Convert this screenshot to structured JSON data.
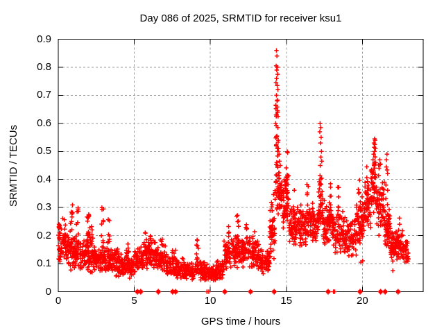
{
  "chart_data": {
    "type": "scatter",
    "title": "Day 086 of 2025, SRMTID for receiver ksu1",
    "xlabel": "GPS time / hours",
    "ylabel": "SRMTID / TECUs",
    "xlim": [
      0,
      24
    ],
    "ylim": [
      0,
      0.9
    ],
    "xticks": [
      0,
      5,
      10,
      15,
      20
    ],
    "yticks": [
      0,
      0.1,
      0.2,
      0.3,
      0.4,
      0.5,
      0.6,
      0.7,
      0.8,
      0.9
    ],
    "grid": true,
    "legend": "none",
    "marker": "+",
    "colors": {
      "marker": "#ff0000",
      "grid": "#9b9b9b",
      "axis": "#000000",
      "background": "#ffffff",
      "text": "#000000"
    },
    "cloud_bins_format": "[x_start,x_end,y_min,y_max,count]",
    "cloud_bins": [
      [
        0.0,
        0.5,
        0.09,
        0.27,
        55
      ],
      [
        0.5,
        1.0,
        0.07,
        0.22,
        55
      ],
      [
        1.0,
        1.6,
        0.07,
        0.21,
        60
      ],
      [
        1.6,
        2.3,
        0.06,
        0.2,
        70
      ],
      [
        2.3,
        3.1,
        0.06,
        0.18,
        80
      ],
      [
        3.1,
        4.0,
        0.05,
        0.17,
        85
      ],
      [
        4.0,
        5.0,
        0.04,
        0.15,
        95
      ],
      [
        5.0,
        5.6,
        0.06,
        0.17,
        55
      ],
      [
        5.6,
        6.3,
        0.07,
        0.19,
        60
      ],
      [
        6.3,
        7.1,
        0.06,
        0.18,
        65
      ],
      [
        7.1,
        7.6,
        0.05,
        0.15,
        45
      ],
      [
        7.6,
        8.3,
        0.04,
        0.13,
        60
      ],
      [
        8.3,
        9.1,
        0.04,
        0.11,
        70
      ],
      [
        9.1,
        9.6,
        0.04,
        0.12,
        48
      ],
      [
        9.6,
        10.4,
        0.03,
        0.1,
        70
      ],
      [
        10.4,
        10.9,
        0.04,
        0.12,
        45
      ],
      [
        10.9,
        11.4,
        0.07,
        0.2,
        48
      ],
      [
        11.4,
        12.0,
        0.08,
        0.21,
        55
      ],
      [
        12.0,
        12.7,
        0.08,
        0.2,
        60
      ],
      [
        12.7,
        13.3,
        0.07,
        0.19,
        55
      ],
      [
        13.3,
        13.9,
        0.06,
        0.17,
        55
      ],
      [
        13.9,
        14.25,
        0.1,
        0.32,
        38
      ],
      [
        14.25,
        14.6,
        0.25,
        0.46,
        40
      ],
      [
        14.6,
        15.15,
        0.22,
        0.44,
        65
      ],
      [
        15.15,
        15.8,
        0.14,
        0.32,
        65
      ],
      [
        15.8,
        16.5,
        0.15,
        0.33,
        70
      ],
      [
        16.5,
        17.1,
        0.17,
        0.33,
        60
      ],
      [
        17.1,
        17.4,
        0.2,
        0.42,
        32
      ],
      [
        17.4,
        18.0,
        0.15,
        0.33,
        60
      ],
      [
        18.0,
        18.8,
        0.13,
        0.3,
        75
      ],
      [
        18.8,
        19.6,
        0.12,
        0.28,
        75
      ],
      [
        19.6,
        20.1,
        0.15,
        0.34,
        55
      ],
      [
        20.1,
        20.55,
        0.2,
        0.4,
        48
      ],
      [
        20.55,
        20.9,
        0.28,
        0.5,
        42
      ],
      [
        20.9,
        21.45,
        0.18,
        0.42,
        55
      ],
      [
        21.45,
        21.85,
        0.14,
        0.3,
        48
      ],
      [
        21.85,
        22.15,
        0.08,
        0.22,
        42
      ],
      [
        22.15,
        22.65,
        0.1,
        0.25,
        55
      ],
      [
        22.65,
        23.05,
        0.09,
        0.2,
        35
      ]
    ],
    "spike_columns_format": "[x_center,y_min,y_max,count]",
    "spike_columns": [
      [
        0.87,
        0.19,
        0.31,
        10
      ],
      [
        1.25,
        0.18,
        0.3,
        8
      ],
      [
        1.95,
        0.15,
        0.3,
        13
      ],
      [
        2.15,
        0.15,
        0.27,
        8
      ],
      [
        2.9,
        0.17,
        0.3,
        10
      ],
      [
        3.3,
        0.15,
        0.26,
        8
      ],
      [
        4.55,
        0.12,
        0.19,
        6
      ],
      [
        5.75,
        0.13,
        0.22,
        7
      ],
      [
        6.05,
        0.13,
        0.21,
        6
      ],
      [
        6.8,
        0.12,
        0.22,
        7
      ],
      [
        7.7,
        0.1,
        0.16,
        6
      ],
      [
        9.15,
        0.1,
        0.2,
        8
      ],
      [
        11.25,
        0.13,
        0.24,
        7
      ],
      [
        11.8,
        0.16,
        0.29,
        9
      ],
      [
        12.4,
        0.14,
        0.24,
        6
      ],
      [
        12.85,
        0.13,
        0.22,
        6
      ],
      [
        14.1,
        0.18,
        0.35,
        9
      ],
      [
        14.38,
        0.44,
        0.72,
        20
      ],
      [
        15.05,
        0.34,
        0.5,
        8
      ],
      [
        15.5,
        0.24,
        0.38,
        7
      ],
      [
        16.4,
        0.25,
        0.4,
        8
      ],
      [
        17.25,
        0.24,
        0.44,
        12
      ],
      [
        17.9,
        0.25,
        0.4,
        8
      ],
      [
        18.45,
        0.24,
        0.38,
        7
      ],
      [
        19.8,
        0.27,
        0.4,
        7
      ],
      [
        20.35,
        0.3,
        0.46,
        8
      ],
      [
        21.1,
        0.3,
        0.47,
        8
      ],
      [
        21.6,
        0.24,
        0.49,
        9
      ],
      [
        22.4,
        0.17,
        0.28,
        6
      ]
    ],
    "peak_points_format": "[x,y]",
    "peak_points": [
      [
        14.35,
        0.86
      ],
      [
        14.38,
        0.84
      ],
      [
        14.33,
        0.805
      ],
      [
        14.41,
        0.8
      ],
      [
        14.37,
        0.79
      ],
      [
        14.43,
        0.775
      ],
      [
        14.36,
        0.76
      ],
      [
        14.32,
        0.745
      ],
      [
        14.4,
        0.735
      ],
      [
        14.44,
        0.72
      ],
      [
        14.35,
        0.7
      ],
      [
        14.39,
        0.68
      ],
      [
        14.31,
        0.665
      ],
      [
        14.42,
        0.645
      ],
      [
        14.36,
        0.63
      ],
      [
        14.46,
        0.625
      ],
      [
        14.3,
        0.6
      ],
      [
        14.44,
        0.585
      ],
      [
        14.38,
        0.555
      ],
      [
        14.47,
        0.54
      ],
      [
        14.33,
        0.52
      ],
      [
        14.48,
        0.51
      ],
      [
        14.52,
        0.49
      ],
      [
        14.55,
        0.465
      ],
      [
        14.6,
        0.45
      ],
      [
        17.22,
        0.6
      ],
      [
        17.26,
        0.585
      ],
      [
        17.2,
        0.57
      ],
      [
        17.29,
        0.55
      ],
      [
        17.24,
        0.53
      ],
      [
        17.31,
        0.5
      ],
      [
        17.27,
        0.48
      ],
      [
        17.33,
        0.465
      ],
      [
        17.23,
        0.45
      ],
      [
        20.8,
        0.545
      ],
      [
        20.84,
        0.54
      ],
      [
        20.76,
        0.53
      ],
      [
        20.82,
        0.525
      ],
      [
        20.78,
        0.515
      ],
      [
        20.86,
        0.51
      ],
      [
        20.8,
        0.5
      ],
      [
        20.74,
        0.49
      ],
      [
        20.84,
        0.48
      ],
      [
        20.7,
        0.47
      ],
      [
        20.88,
        0.46
      ],
      [
        20.76,
        0.455
      ],
      [
        21.15,
        0.47
      ],
      [
        21.2,
        0.455
      ],
      [
        21.1,
        0.44
      ],
      [
        21.62,
        0.49
      ],
      [
        21.58,
        0.47
      ],
      [
        19.9,
        0.105
      ],
      [
        20.02,
        0.11
      ],
      [
        0.05,
        0.24
      ],
      [
        0.08,
        0.21
      ],
      [
        22.0,
        0.075
      ]
    ],
    "zero_points_format": "[x, 2=bold_cluster|1=single]",
    "zero_points": [
      [
        5.2,
        2
      ],
      [
        5.42,
        2
      ],
      [
        6.58,
        2
      ],
      [
        7.52,
        2
      ],
      [
        7.72,
        2
      ],
      [
        9.78,
        1
      ],
      [
        9.9,
        1
      ],
      [
        10.95,
        2
      ],
      [
        12.65,
        2
      ],
      [
        14.2,
        2
      ],
      [
        17.75,
        2
      ],
      [
        18.1,
        1
      ],
      [
        18.18,
        1
      ],
      [
        19.85,
        2
      ],
      [
        21.2,
        2
      ],
      [
        21.5,
        2
      ],
      [
        22.35,
        2
      ]
    ]
  }
}
